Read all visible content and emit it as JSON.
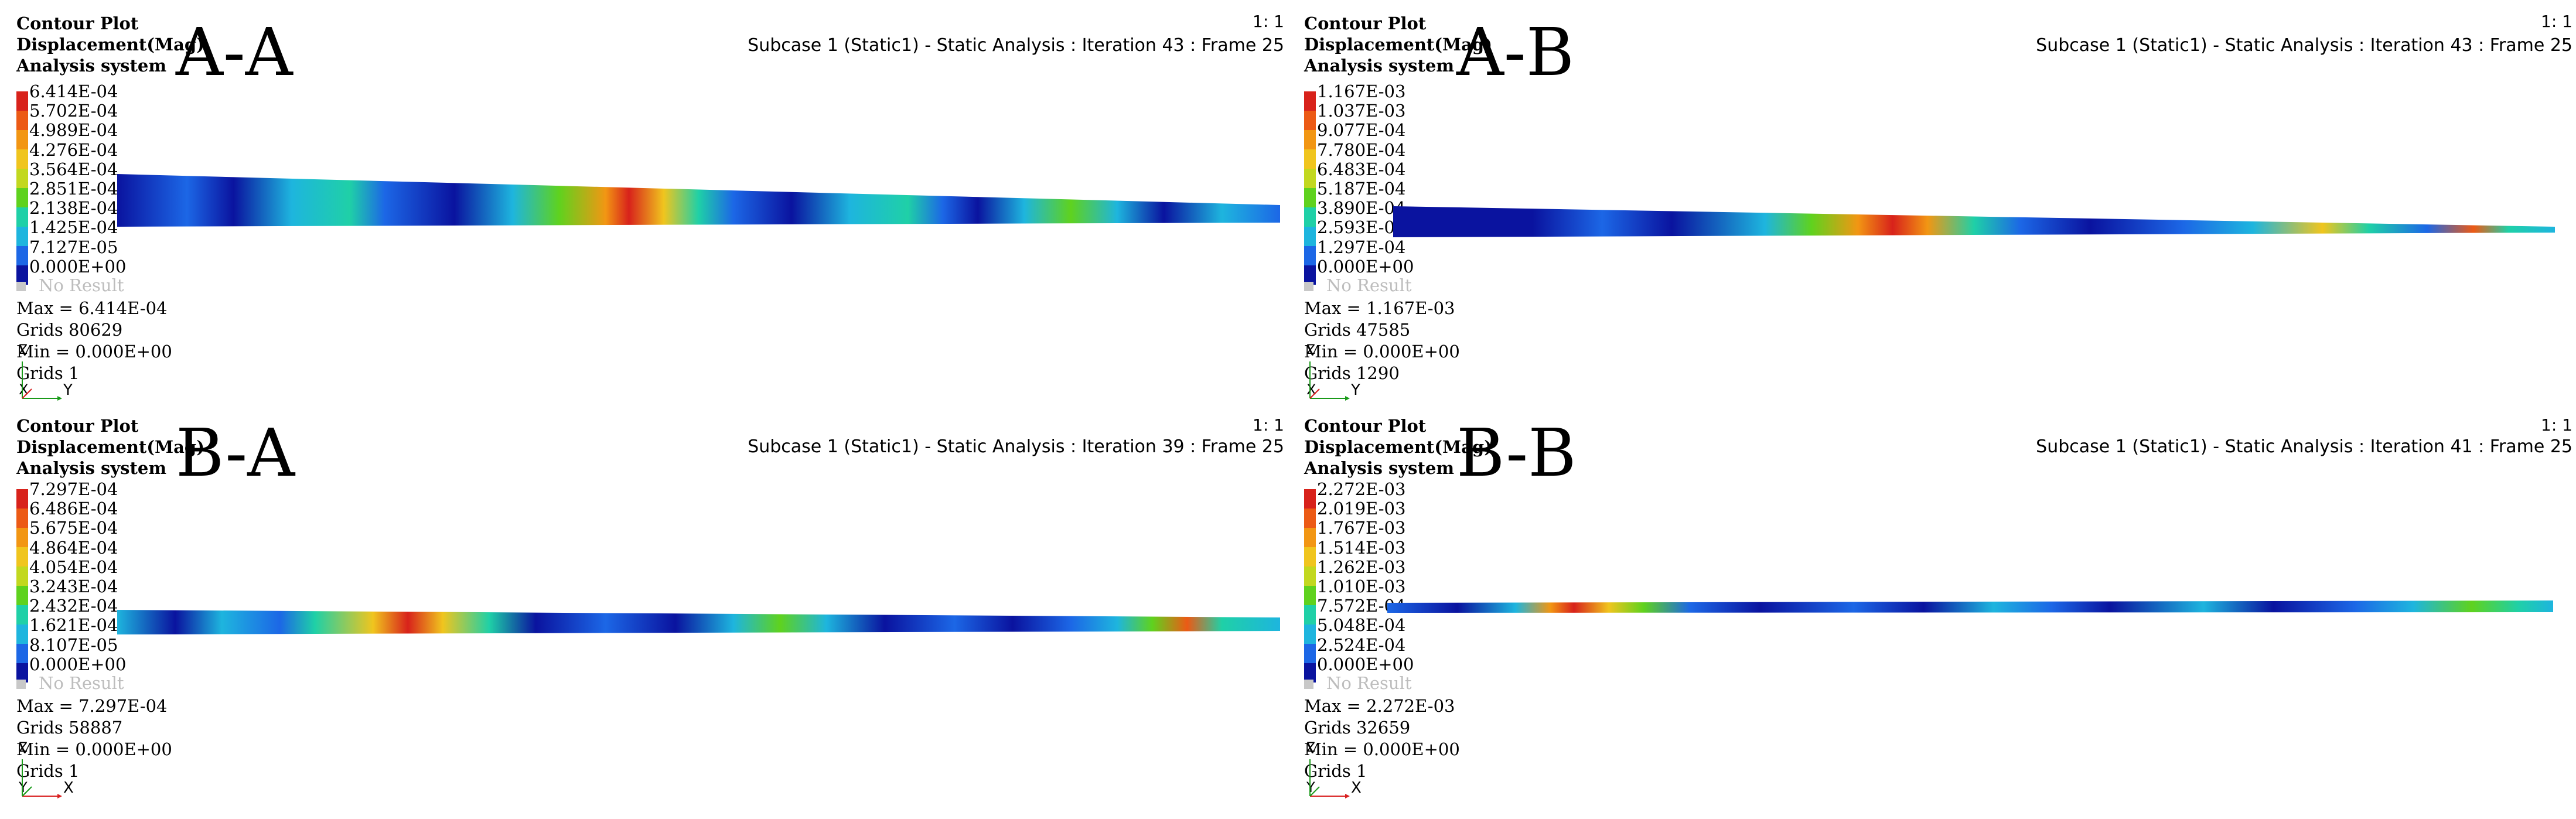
{
  "colors": {
    "legend_bands": [
      "#d8221b",
      "#ec5a15",
      "#f29613",
      "#f0c51e",
      "#c2d81f",
      "#5fd21e",
      "#1fd0a7",
      "#1eb5de",
      "#1c67e6",
      "#0a139f"
    ],
    "no_result": "#c8c8c8"
  },
  "panels": [
    {
      "tag": "A-A",
      "title": "Contour Plot",
      "quantity": "Displacement(Mag)",
      "system": "Analysis system",
      "scale": "1: 1",
      "subcase": "Subcase 1 (Static1) - Static Analysis : Iteration 43 : Frame 25",
      "legend": [
        "6.414E-04",
        "5.702E-04",
        "4.989E-04",
        "4.276E-04",
        "3.564E-04",
        "2.851E-04",
        "2.138E-04",
        "1.425E-04",
        "7.127E-05",
        "0.000E+00"
      ],
      "no_result": "No Result",
      "max": "Max = 6.414E-04",
      "max_grid": "Grids 80629",
      "min": "Min = 0.000E+00",
      "min_grid": "Grids 1",
      "axis_up": "Z",
      "axis_right": "Y",
      "axis_corner": "X"
    },
    {
      "tag": "A-B",
      "title": "Contour Plot",
      "quantity": "Displacement(Mag)",
      "system": "Analysis system",
      "scale": "1: 1",
      "subcase": "Subcase 1 (Static1) - Static Analysis : Iteration 43 : Frame 25",
      "legend": [
        "1.167E-03",
        "1.037E-03",
        "9.077E-04",
        "7.780E-04",
        "6.483E-04",
        "5.187E-04",
        "3.890E-04",
        "2.593E-04",
        "1.297E-04",
        "0.000E+00"
      ],
      "no_result": "No Result",
      "max": "Max = 1.167E-03",
      "max_grid": "Grids 47585",
      "min": "Min = 0.000E+00",
      "min_grid": "Grids 1290",
      "axis_up": "Z",
      "axis_right": "Y",
      "axis_corner": "X"
    },
    {
      "tag": "B-A",
      "title": "Contour Plot",
      "quantity": "Displacement(Mag)",
      "system": "Analysis system",
      "scale": "1: 1",
      "subcase": "Subcase 1 (Static1) - Static Analysis : Iteration 39 : Frame 25",
      "legend": [
        "7.297E-04",
        "6.486E-04",
        "5.675E-04",
        "4.864E-04",
        "4.054E-04",
        "3.243E-04",
        "2.432E-04",
        "1.621E-04",
        "8.107E-05",
        "0.000E+00"
      ],
      "no_result": "No Result",
      "max": "Max = 7.297E-04",
      "max_grid": "Grids 58887",
      "min": "Min = 0.000E+00",
      "min_grid": "Grids 1",
      "axis_up": "Z",
      "axis_right": "X",
      "axis_corner": "Y"
    },
    {
      "tag": "B-B",
      "title": "Contour Plot",
      "quantity": "Displacement(Mag)",
      "system": "Analysis system",
      "scale": "1: 1",
      "subcase": "Subcase 1 (Static1) - Static Analysis : Iteration 41 : Frame 25",
      "legend": [
        "2.272E-03",
        "2.019E-03",
        "1.767E-03",
        "1.514E-03",
        "1.262E-03",
        "1.010E-03",
        "7.572E-04",
        "5.048E-04",
        "2.524E-04",
        "0.000E+00"
      ],
      "no_result": "No Result",
      "max": "Max = 2.272E-03",
      "max_grid": "Grids 32659",
      "min": "Min = 0.000E+00",
      "min_grid": "Grids 1",
      "axis_up": "Z",
      "axis_right": "X",
      "axis_corner": "Y"
    }
  ]
}
